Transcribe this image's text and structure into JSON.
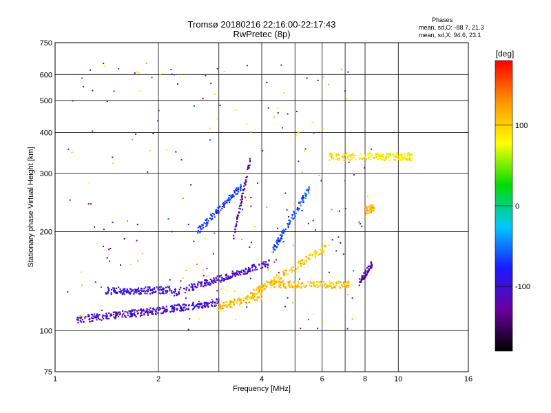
{
  "title": {
    "line1": "Tromsø 20180216 22:16:00-22:17:43",
    "line2": "RwPretec (8p)"
  },
  "stats": {
    "heading": "Phases",
    "line1": "mean, sd,O: -88.7, 21.3",
    "line2": "mean, sd,X:  94.6, 23.1"
  },
  "colorbar": {
    "label": "[deg]",
    "ticks": [
      100,
      0,
      -100
    ],
    "range": [
      -180,
      180
    ],
    "colormap": [
      "#000000",
      "#6a00a0",
      "#1a1aff",
      "#00c8ff",
      "#00dc00",
      "#ffff00",
      "#ff9600",
      "#ff0000"
    ]
  },
  "chart_data": {
    "type": "scatter",
    "xlabel": "Frequency [MHz]",
    "ylabel": "Stationary phase Virtual Height [km]",
    "xscale": "log",
    "yscale": "log",
    "xlim": [
      1,
      16
    ],
    "ylim": [
      75,
      750
    ],
    "xticks": [
      1,
      2,
      4,
      6,
      8,
      10,
      16
    ],
    "yticks": [
      75,
      100,
      200,
      300,
      400,
      500,
      600,
      750
    ],
    "grid": true,
    "color_by": "phase [deg]",
    "traces": [
      {
        "x_start": 1.15,
        "x_end": 2.0,
        "y_start": 108,
        "y_end": 115,
        "phase": -110
      },
      {
        "x_start": 2.0,
        "x_end": 3.0,
        "y_start": 115,
        "y_end": 122,
        "phase": -100
      },
      {
        "x_start": 3.0,
        "x_end": 4.0,
        "y_start": 118,
        "y_end": 128,
        "phase": 110
      },
      {
        "x_start": 3.7,
        "x_end": 6.2,
        "y_start": 128,
        "y_end": 180,
        "phase": 105
      },
      {
        "x_start": 4.2,
        "x_end": 7.2,
        "y_start": 138,
        "y_end": 138,
        "phase": 110
      },
      {
        "x_start": 1.4,
        "x_end": 2.2,
        "y_start": 132,
        "y_end": 133,
        "phase": -95
      },
      {
        "x_start": 2.2,
        "x_end": 4.2,
        "y_start": 130,
        "y_end": 160,
        "phase": -110
      },
      {
        "x_start": 2.6,
        "x_end": 3.5,
        "y_start": 200,
        "y_end": 275,
        "phase": -70
      },
      {
        "x_start": 3.3,
        "x_end": 3.7,
        "y_start": 190,
        "y_end": 330,
        "phase": -120
      },
      {
        "x_start": 4.3,
        "x_end": 5.5,
        "y_start": 175,
        "y_end": 270,
        "phase": -60
      },
      {
        "x_start": 7.7,
        "x_end": 8.4,
        "y_start": 140,
        "y_end": 160,
        "phase": -130
      },
      {
        "x_start": 6.3,
        "x_end": 11.0,
        "y_start": 338,
        "y_end": 338,
        "phase": 90
      },
      {
        "x_start": 8.0,
        "x_end": 8.5,
        "y_start": 232,
        "y_end": 236,
        "phase": 110
      }
    ]
  }
}
